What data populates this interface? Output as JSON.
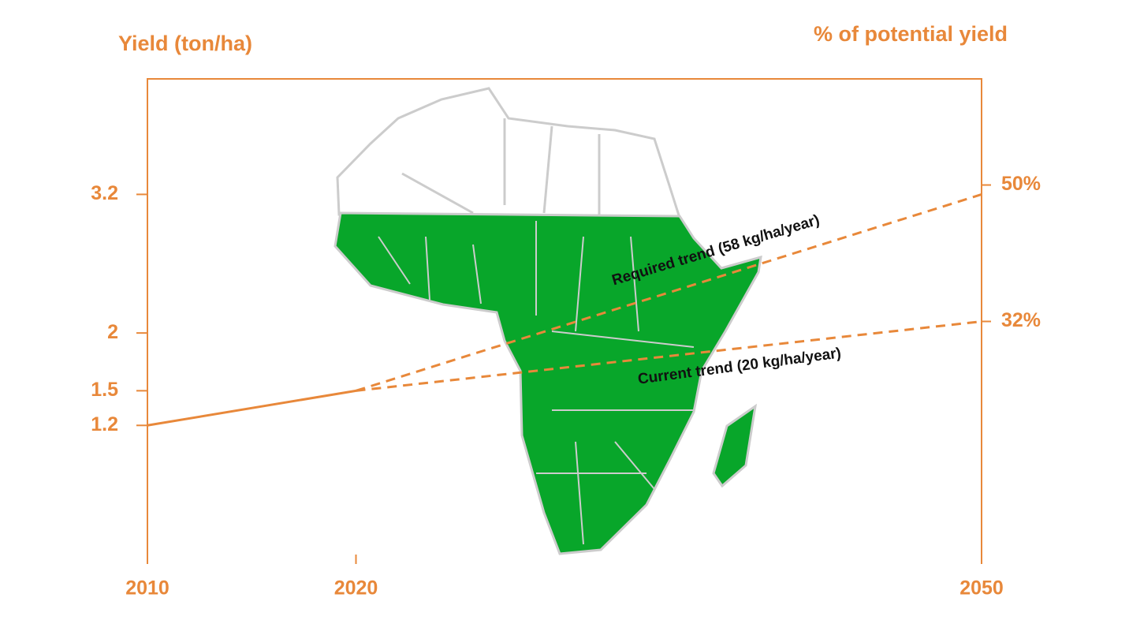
{
  "chart_data": {
    "type": "line",
    "y_axis_label": "Yield (ton/ha)",
    "y2_axis_label": "% of potential yield",
    "xlim": [
      2010,
      2050
    ],
    "xticks": [
      2010,
      2020,
      2050
    ],
    "ylim": [
      0,
      4.2
    ],
    "yticks": [
      1.2,
      1.5,
      2.0,
      3.2
    ],
    "y2lim": [
      0,
      64
    ],
    "y2ticks": [
      {
        "value": 32,
        "label": "32%"
      },
      {
        "value": 50,
        "label": "50%"
      }
    ],
    "series": [
      {
        "color": "#e8883a",
        "dashed": false,
        "x": [
          2010,
          2020
        ],
        "values": [
          1.2,
          1.5
        ]
      },
      {
        "color": "#e8883a",
        "dashed": true,
        "x": [
          2020,
          2050
        ],
        "values": [
          1.5,
          3.2
        ]
      },
      {
        "color": "#e8883a",
        "dashed": true,
        "x": [
          2020,
          2050
        ],
        "values": [
          1.5,
          2.1
        ]
      }
    ],
    "annotations": [
      "Required trend (58 kg/ha/year)",
      "Current trend (20 kg/ha/year)"
    ]
  }
}
